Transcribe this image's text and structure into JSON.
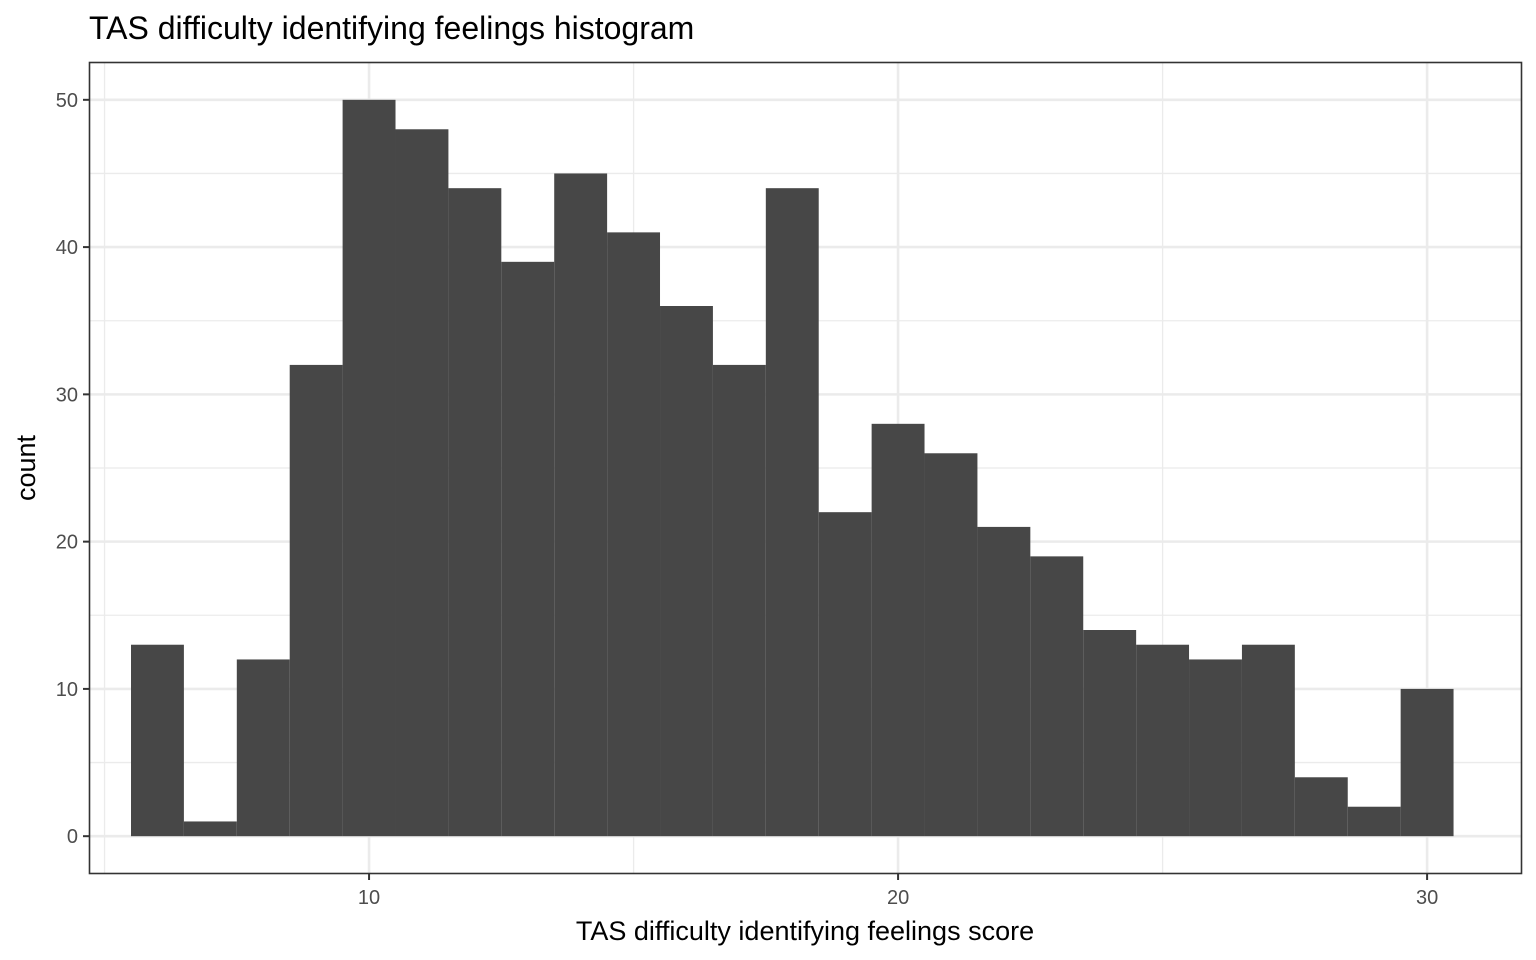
{
  "chart_data": {
    "type": "bar",
    "title": "TAS difficulty identifying feelings histogram",
    "xlabel": "TAS difficulty identifying feelings score",
    "ylabel": "count",
    "bin_width": 1,
    "bins": [
      {
        "x": 6,
        "count": 13
      },
      {
        "x": 7,
        "count": 1
      },
      {
        "x": 8,
        "count": 12
      },
      {
        "x": 9,
        "count": 32
      },
      {
        "x": 10,
        "count": 50
      },
      {
        "x": 11,
        "count": 48
      },
      {
        "x": 12,
        "count": 44
      },
      {
        "x": 13,
        "count": 39
      },
      {
        "x": 14,
        "count": 45
      },
      {
        "x": 15,
        "count": 41
      },
      {
        "x": 16,
        "count": 36
      },
      {
        "x": 17,
        "count": 32
      },
      {
        "x": 18,
        "count": 44
      },
      {
        "x": 19,
        "count": 22
      },
      {
        "x": 20,
        "count": 28
      },
      {
        "x": 21,
        "count": 26
      },
      {
        "x": 22,
        "count": 21
      },
      {
        "x": 23,
        "count": 19
      },
      {
        "x": 24,
        "count": 14
      },
      {
        "x": 25,
        "count": 13
      },
      {
        "x": 26,
        "count": 12
      },
      {
        "x": 27,
        "count": 13
      },
      {
        "x": 28,
        "count": 4
      },
      {
        "x": 29,
        "count": 2
      },
      {
        "x": 30,
        "count": 10
      }
    ],
    "xlim": [
      4.725,
      31.775
    ],
    "ylim": [
      -2.5,
      52.5
    ],
    "x_major_ticks": [
      10,
      20,
      30
    ],
    "x_minor_ticks": [
      5,
      15,
      25
    ],
    "y_major_ticks": [
      0,
      10,
      20,
      30,
      40,
      50
    ],
    "y_minor_ticks": [
      5,
      15,
      25,
      35,
      45
    ],
    "x_tick_labels": [
      "10",
      "20",
      "30"
    ],
    "y_tick_labels": [
      "0",
      "10",
      "20",
      "30",
      "40",
      "50"
    ],
    "grid": true,
    "legend": "none",
    "bar_color": "#474747",
    "grid_color": "#ebebeb",
    "border_color": "#333333"
  }
}
